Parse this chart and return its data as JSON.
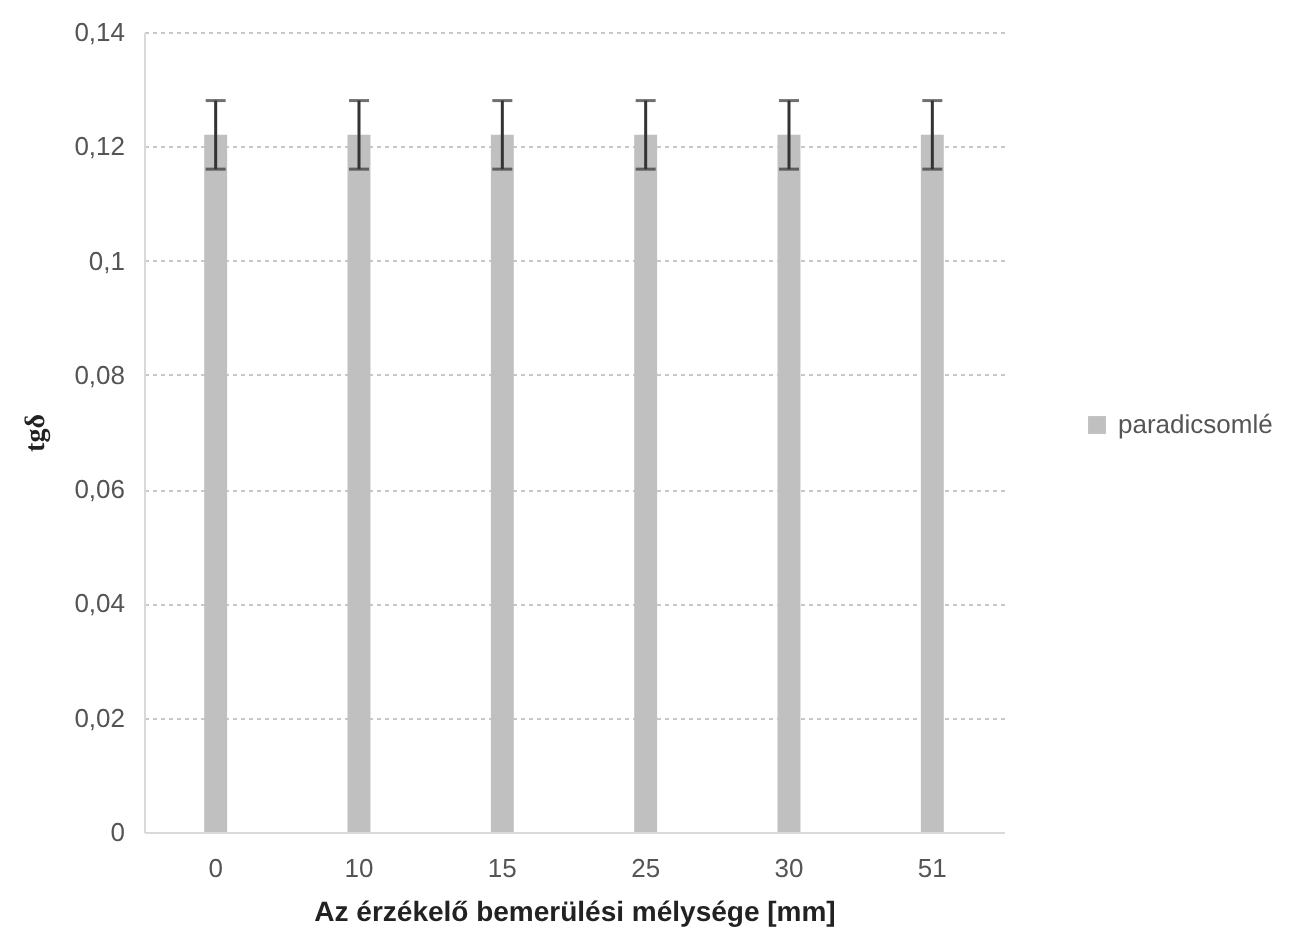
{
  "chart_data": {
    "type": "bar",
    "xlabel": "Az érzékelő bemerülési mélysége [mm]",
    "ylabel": "tgδ",
    "categories": [
      "0",
      "10",
      "15",
      "25",
      "30",
      "51"
    ],
    "series": [
      {
        "name": "paradicsomlé",
        "color": "#c0c0c0",
        "values": [
          0.122,
          0.122,
          0.122,
          0.122,
          0.122,
          0.122
        ],
        "errors": [
          0.006,
          0.006,
          0.006,
          0.006,
          0.006,
          0.006
        ]
      }
    ],
    "ylim": [
      0,
      0.14
    ],
    "yticks": [
      0,
      {
        "value": 0.02,
        "label": "0,02"
      },
      {
        "value": 0.04,
        "label": "0,04"
      },
      {
        "value": 0.06,
        "label": "0,06"
      },
      {
        "value": 0.08,
        "label": "0,08"
      },
      {
        "value": 0.1,
        "label": "0,1"
      },
      {
        "value": 0.12,
        "label": "0,12"
      },
      {
        "value": 0.14,
        "label": "0,14"
      }
    ],
    "grid": "y",
    "legend": "right"
  }
}
